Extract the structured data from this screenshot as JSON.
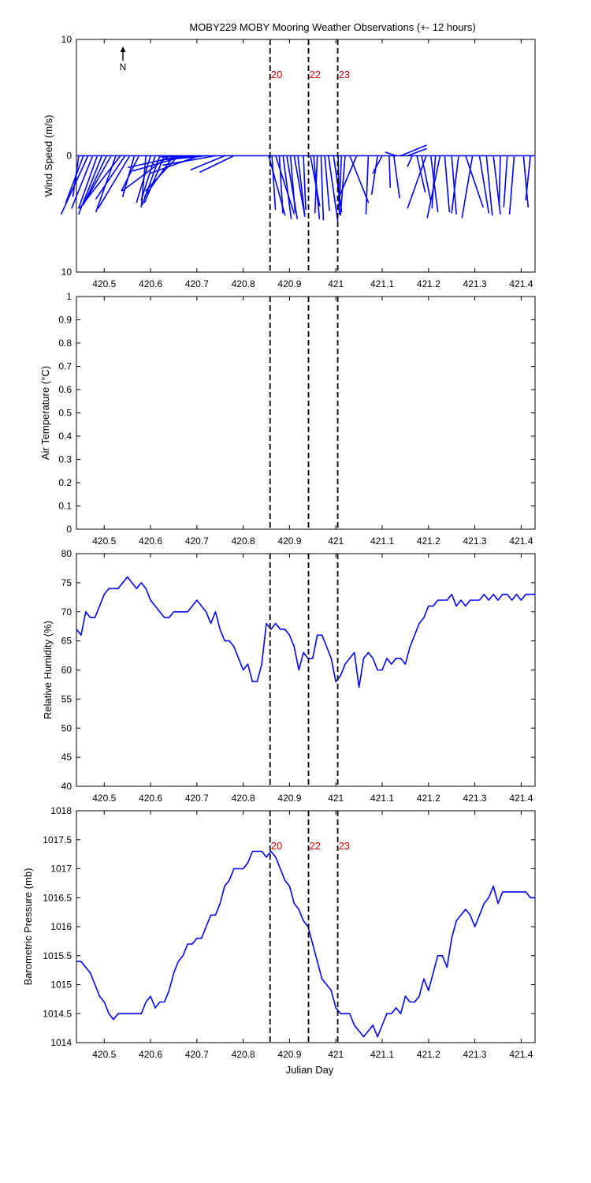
{
  "figure": {
    "title": "MOBY229 MOBY Mooring Weather Observations (+- 12 hours)",
    "xlabel": "Julian Day",
    "north_label": "N",
    "series_color": "#0000ff"
  },
  "chart_data": [
    {
      "type": "line",
      "id": "wind",
      "ylabel": "Wind Speed (m/s)",
      "xlim": [
        420.44,
        421.43
      ],
      "ylim": [
        -10,
        10
      ],
      "yticks": [
        10,
        0,
        -10
      ],
      "ytick_labels": [
        "10",
        "0",
        "10"
      ],
      "xticks": [
        420.5,
        420.6,
        420.7,
        420.8,
        420.9,
        421,
        421.1,
        421.2,
        421.3,
        421.4
      ],
      "vlines": [
        420.858,
        420.941,
        421.004
      ],
      "event_labels": [
        "20",
        "22",
        "23"
      ],
      "wind_sticks": {
        "x": [
          420.445,
          420.455,
          420.465,
          420.475,
          420.485,
          420.495,
          420.505,
          420.515,
          420.525,
          420.535,
          420.545,
          420.555,
          420.565,
          420.575,
          420.59,
          420.6,
          420.61,
          420.62,
          420.63,
          420.64,
          420.65,
          420.66,
          420.665,
          420.675,
          420.685,
          420.695,
          420.705,
          420.72,
          420.74,
          420.76,
          420.78,
          420.855,
          420.862,
          420.87,
          420.878,
          420.886,
          420.894,
          420.902,
          420.91,
          420.918,
          420.93,
          420.945,
          420.952,
          420.96,
          420.968,
          420.976,
          420.984,
          420.995,
          421.005,
          421.012,
          421.02,
          421.03,
          421.045,
          421.07,
          421.09,
          421.1,
          421.115,
          421.125,
          421.13,
          421.14,
          421.155,
          421.165,
          421.175,
          421.185,
          421.195,
          421.205,
          421.215,
          421.225,
          421.235,
          421.25,
          421.265,
          421.28,
          421.295,
          421.31,
          421.325,
          421.34,
          421.355,
          421.37,
          421.385,
          421.405,
          421.42
        ],
        "u": [
          -0.5,
          -1.5,
          -2.3,
          -1.8,
          -1.6,
          -2.0,
          -1.9,
          -2.4,
          -1.7,
          -3.5,
          -2.5,
          -2.7,
          -1.0,
          -1.5,
          -0.4,
          -1.2,
          -1.2,
          -1.5,
          -1.7,
          -4.0,
          -2.5,
          -2.8,
          -4.5,
          -4.5,
          -2.5,
          -3.0,
          -4.2,
          -3.1,
          -4.5,
          -2.9,
          -2.9,
          1.4,
          0.3,
          1.6,
          0.3,
          0.7,
          0.9,
          0.4,
          0.9,
          0.6,
          0.2,
          0.8,
          0.5,
          -0.2,
          0.2,
          0.4,
          0.8,
          0.7,
          0.1,
          -0.2,
          -0.4,
          1.6,
          -1.5,
          -0.2,
          -0.5,
          -0.8,
          0.1,
          0.5,
          -0.9,
          2.2,
          1.6,
          -0.4,
          0.7,
          0.8,
          -1.6,
          0.6,
          -0.3,
          -1.1,
          0.4,
          0.4,
          -0.6,
          1.5,
          -0.9,
          0.8,
          0.5,
          0.6,
          -0.1,
          -0.3,
          -0.4,
          0.4,
          -0.4
        ],
        "v": [
          -3.5,
          -4.0,
          -5.0,
          -4.5,
          -4.5,
          -5.0,
          -4.0,
          -4.2,
          -4.8,
          -4.5,
          -3.7,
          -4.5,
          -3.5,
          -3.0,
          -4.4,
          -4.0,
          -3.8,
          -4.2,
          -4.0,
          -3.0,
          -3.5,
          -3.0,
          -1.0,
          -1.3,
          -0.1,
          -0.4,
          -1.5,
          -0.3,
          -0.8,
          -1.2,
          -1.4,
          -5.1,
          -4.6,
          -5.0,
          -4.9,
          -5.4,
          -5.4,
          -4.8,
          -5.1,
          -5.2,
          -4.6,
          -4.3,
          -5.4,
          -4.9,
          -5.5,
          -4.7,
          -5.6,
          -4.8,
          -5.0,
          -4.8,
          -5.1,
          -4.0,
          -3.5,
          -5.0,
          -3.3,
          -1.5,
          -2.7,
          -3.6,
          0.3,
          0.9,
          0.6,
          -0.9,
          -3.1,
          -3.9,
          -4.5,
          -4.8,
          -4.5,
          -5.3,
          -4.8,
          -5.0,
          -4.9,
          -4.4,
          -5.3,
          -4.9,
          -5.1,
          -5.0,
          -4.3,
          -4.4,
          -5.0,
          -4.4,
          -3.8
        ]
      }
    },
    {
      "type": "line",
      "id": "airtemp",
      "ylabel": "Air Temperature (°C)",
      "xlim": [
        420.44,
        421.43
      ],
      "ylim": [
        0,
        1
      ],
      "yticks": [
        0,
        0.1,
        0.2,
        0.3,
        0.4,
        0.5,
        0.6,
        0.7,
        0.8,
        0.9,
        1
      ],
      "ytick_labels": [
        "0",
        "0.1",
        "0.2",
        "0.3",
        "0.4",
        "0.5",
        "0.6",
        "0.7",
        "0.8",
        "0.9",
        "1"
      ],
      "xticks": [
        420.5,
        420.6,
        420.7,
        420.8,
        420.9,
        421,
        421.1,
        421.2,
        421.3,
        421.4
      ],
      "vlines": [
        420.858,
        420.941,
        421.004
      ],
      "event_labels": [],
      "series": []
    },
    {
      "type": "line",
      "id": "humidity",
      "ylabel": "Relative Humidity (%)",
      "xlim": [
        420.44,
        421.43
      ],
      "ylim": [
        40,
        80
      ],
      "yticks": [
        40,
        45,
        50,
        55,
        60,
        65,
        70,
        75,
        80
      ],
      "ytick_labels": [
        "40",
        "45",
        "50",
        "55",
        "60",
        "65",
        "70",
        "75",
        "80"
      ],
      "xticks": [
        420.5,
        420.6,
        420.7,
        420.8,
        420.9,
        421,
        421.1,
        421.2,
        421.3,
        421.4
      ],
      "vlines": [
        420.858,
        420.941,
        421.004
      ],
      "event_labels": [],
      "series": [
        {
          "x": [
            420.44,
            420.45,
            420.46,
            420.47,
            420.48,
            420.49,
            420.5,
            420.51,
            420.52,
            420.53,
            420.54,
            420.55,
            420.56,
            420.57,
            420.58,
            420.59,
            420.6,
            420.61,
            420.62,
            420.63,
            420.64,
            420.65,
            420.66,
            420.67,
            420.68,
            420.69,
            420.7,
            420.71,
            420.72,
            420.73,
            420.74,
            420.75,
            420.76,
            420.77,
            420.78,
            420.79,
            420.8,
            420.81,
            420.82,
            420.83,
            420.84,
            420.85,
            420.86,
            420.87,
            420.88,
            420.89,
            420.9,
            420.91,
            420.92,
            420.93,
            420.94,
            420.95,
            420.96,
            420.97,
            420.98,
            420.99,
            421.0,
            421.01,
            421.02,
            421.03,
            421.04,
            421.05,
            421.06,
            421.07,
            421.08,
            421.09,
            421.1,
            421.11,
            421.12,
            421.13,
            421.14,
            421.15,
            421.16,
            421.17,
            421.18,
            421.19,
            421.2,
            421.21,
            421.22,
            421.23,
            421.24,
            421.25,
            421.26,
            421.27,
            421.28,
            421.29,
            421.3,
            421.31,
            421.32,
            421.33,
            421.34,
            421.35,
            421.36,
            421.37,
            421.38,
            421.39,
            421.4,
            421.41,
            421.42,
            421.43
          ],
          "y": [
            67,
            66,
            70,
            69,
            69,
            71,
            73,
            74,
            74,
            74,
            75,
            76,
            75,
            74,
            75,
            74,
            72,
            71,
            70,
            69,
            69,
            70,
            70,
            70,
            70,
            71,
            72,
            71,
            70,
            68,
            70,
            67,
            65,
            65,
            64,
            62,
            60,
            61,
            58,
            58,
            61,
            68,
            67,
            68,
            67,
            67,
            66,
            64,
            60,
            63,
            62,
            62,
            66,
            66,
            64,
            62,
            58,
            59,
            61,
            62,
            63,
            57,
            62,
            63,
            62,
            60,
            60,
            62,
            61,
            62,
            62,
            61,
            64,
            66,
            68,
            69,
            71,
            71,
            72,
            72,
            72,
            73,
            71,
            72,
            71,
            72,
            72,
            72,
            73,
            72,
            73,
            72,
            73,
            73,
            72,
            73,
            72,
            73,
            73,
            73
          ]
        }
      ]
    },
    {
      "type": "line",
      "id": "pressure",
      "ylabel": "Barometric Pressure (mb)",
      "xlim": [
        420.44,
        421.43
      ],
      "ylim": [
        1014,
        1018
      ],
      "yticks": [
        1014,
        1014.5,
        1015,
        1015.5,
        1016,
        1016.5,
        1017,
        1017.5,
        1018
      ],
      "ytick_labels": [
        "1014",
        "1014.5",
        "1015",
        "1015.5",
        "1016",
        "1016.5",
        "1017",
        "1017.5",
        "1018"
      ],
      "xticks": [
        420.5,
        420.6,
        420.7,
        420.8,
        420.9,
        421,
        421.1,
        421.2,
        421.3,
        421.4
      ],
      "xtick_labels": [
        "420.5",
        "420.6",
        "420.7",
        "420.8",
        "420.9",
        "421",
        "421.1",
        "421.2",
        "421.3",
        "421.4"
      ],
      "vlines": [
        420.858,
        420.941,
        421.004
      ],
      "event_labels": [
        "20",
        "22",
        "23"
      ],
      "series": [
        {
          "x": [
            420.44,
            420.45,
            420.46,
            420.47,
            420.48,
            420.49,
            420.5,
            420.51,
            420.52,
            420.53,
            420.54,
            420.55,
            420.56,
            420.57,
            420.58,
            420.59,
            420.6,
            420.61,
            420.62,
            420.63,
            420.64,
            420.65,
            420.66,
            420.67,
            420.68,
            420.69,
            420.7,
            420.71,
            420.72,
            420.73,
            420.74,
            420.75,
            420.76,
            420.77,
            420.78,
            420.79,
            420.8,
            420.81,
            420.82,
            420.83,
            420.84,
            420.85,
            420.86,
            420.87,
            420.88,
            420.89,
            420.9,
            420.91,
            420.92,
            420.93,
            420.94,
            420.95,
            420.96,
            420.97,
            420.98,
            420.99,
            421.0,
            421.01,
            421.02,
            421.03,
            421.04,
            421.05,
            421.06,
            421.07,
            421.08,
            421.09,
            421.1,
            421.11,
            421.12,
            421.13,
            421.14,
            421.15,
            421.16,
            421.17,
            421.18,
            421.19,
            421.2,
            421.21,
            421.22,
            421.23,
            421.24,
            421.25,
            421.26,
            421.27,
            421.28,
            421.29,
            421.3,
            421.31,
            421.32,
            421.33,
            421.34,
            421.35,
            421.36,
            421.37,
            421.38,
            421.39,
            421.4,
            421.41,
            421.42,
            421.43
          ],
          "y": [
            1015.4,
            1015.4,
            1015.3,
            1015.2,
            1015.0,
            1014.8,
            1014.7,
            1014.5,
            1014.4,
            1014.5,
            1014.5,
            1014.5,
            1014.5,
            1014.5,
            1014.5,
            1014.7,
            1014.8,
            1014.6,
            1014.7,
            1014.7,
            1014.9,
            1015.2,
            1015.4,
            1015.5,
            1015.7,
            1015.7,
            1015.8,
            1015.8,
            1016.0,
            1016.2,
            1016.2,
            1016.4,
            1016.7,
            1016.8,
            1017.0,
            1017.0,
            1017.0,
            1017.1,
            1017.3,
            1017.3,
            1017.3,
            1017.2,
            1017.3,
            1017.2,
            1017.0,
            1016.8,
            1016.7,
            1016.4,
            1016.3,
            1016.1,
            1016.0,
            1015.7,
            1015.4,
            1015.1,
            1015.0,
            1014.9,
            1014.6,
            1014.5,
            1014.5,
            1014.5,
            1014.3,
            1014.2,
            1014.1,
            1014.2,
            1014.3,
            1014.1,
            1014.3,
            1014.5,
            1014.5,
            1014.6,
            1014.5,
            1014.8,
            1014.7,
            1014.7,
            1014.8,
            1015.1,
            1014.9,
            1015.2,
            1015.5,
            1015.5,
            1015.3,
            1015.8,
            1016.1,
            1016.2,
            1016.3,
            1016.2,
            1016.0,
            1016.2,
            1016.4,
            1016.5,
            1016.7,
            1016.4,
            1016.6,
            1016.6,
            1016.6,
            1016.6,
            1016.6,
            1016.6,
            1016.5,
            1016.5
          ]
        }
      ]
    }
  ]
}
